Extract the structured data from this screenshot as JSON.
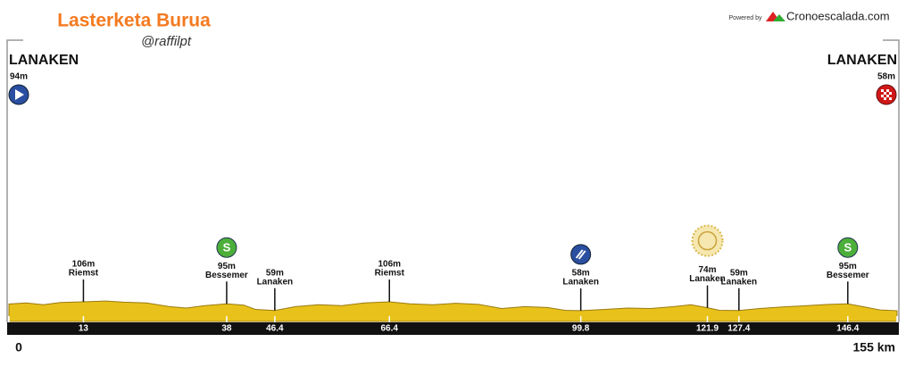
{
  "chart_data": {
    "type": "area",
    "title": "Lasterketa Burua",
    "subtitle": "@raffilpt",
    "powered_by": "Powered by",
    "brand": "Cronoescalada.com",
    "sprint_icon_text": "S",
    "start": {
      "name": "LANAKEN",
      "elevation_label": "94m"
    },
    "finish": {
      "name": "LANAKEN",
      "elevation_label": "58m"
    },
    "x": [
      0,
      3,
      6,
      9,
      13,
      17,
      20,
      24,
      28,
      31,
      34,
      38,
      41,
      43,
      46.4,
      50,
      54,
      58,
      62,
      66.4,
      70,
      74,
      78,
      82,
      86,
      90,
      94,
      97,
      99.8,
      104,
      108,
      112,
      116,
      119,
      121.9,
      124,
      127.4,
      131,
      135,
      139,
      143,
      146.4,
      149,
      152,
      155
    ],
    "values": [
      94,
      100,
      90,
      102,
      106,
      110,
      104,
      100,
      80,
      72,
      85,
      95,
      88,
      65,
      59,
      80,
      90,
      85,
      100,
      106,
      95,
      90,
      98,
      92,
      70,
      80,
      75,
      60,
      58,
      65,
      72,
      70,
      80,
      90,
      74,
      60,
      59,
      70,
      78,
      85,
      92,
      95,
      80,
      62,
      58
    ],
    "color": "#e8c21a",
    "xlim": [
      0,
      155
    ],
    "ylim": [
      0,
      1500
    ],
    "xticks": [
      0,
      13,
      38,
      46.4,
      66.4,
      99.8,
      121.9,
      127.4,
      146.4,
      {
        "value": 155,
        "label": "155 km"
      }
    ],
    "waypoints": [
      {
        "km": 13,
        "elevation_label": "106m",
        "name": "Riemst"
      },
      {
        "km": 38,
        "elevation_label": "95m",
        "name": "Bessemer",
        "icon": "sprint"
      },
      {
        "km": 46.4,
        "elevation_label": "59m",
        "name": "Lanaken"
      },
      {
        "km": 66.4,
        "elevation_label": "106m",
        "name": "Riemst"
      },
      {
        "km": 99.8,
        "elevation_label": "58m",
        "name": "Lanaken",
        "icon": "feed"
      },
      {
        "km": 121.9,
        "elevation_label": "74m",
        "name": "Lanaken",
        "icon": "kom"
      },
      {
        "km": 127.4,
        "elevation_label": "59m",
        "name": "Lanaken"
      },
      {
        "km": 146.4,
        "elevation_label": "95m",
        "name": "Bessemer",
        "icon": "sprint"
      }
    ]
  }
}
